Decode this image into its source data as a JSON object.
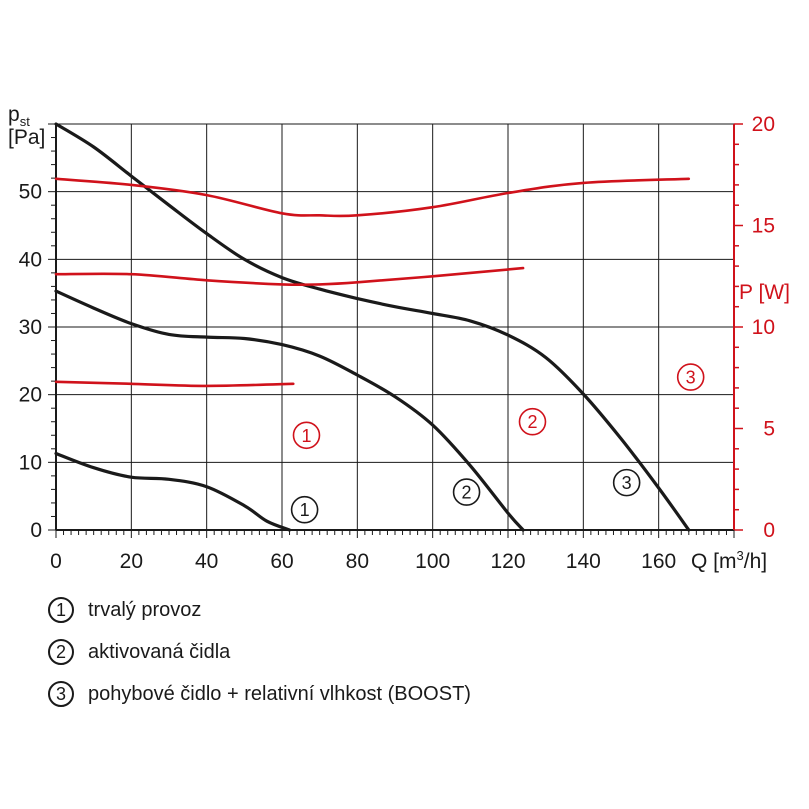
{
  "chart_data": {
    "type": "line",
    "left_axis": {
      "label_main": "p",
      "label_sub": "st",
      "unit": "[Pa]",
      "range": [
        0,
        60
      ],
      "ticks": [
        0,
        10,
        20,
        30,
        40,
        50
      ],
      "tick_labels": [
        "0",
        "10",
        "20",
        "30",
        "40",
        "50"
      ]
    },
    "right_axis": {
      "label": "P [W]",
      "range": [
        0,
        20
      ],
      "ticks": [
        0,
        5,
        10,
        15,
        20
      ],
      "tick_labels": [
        "0",
        "5",
        "10",
        "15",
        "20"
      ],
      "color": "#d0121b"
    },
    "x_axis": {
      "label_pre": "Q [m",
      "label_sup": "3",
      "label_post": "/h]",
      "range": [
        0,
        180
      ],
      "ticks": [
        0,
        20,
        40,
        60,
        80,
        100,
        120,
        140,
        160
      ],
      "tick_labels": [
        "0",
        "20",
        "40",
        "60",
        "80",
        "100",
        "120",
        "140",
        "160"
      ]
    },
    "grid": true,
    "pressure_series": [
      {
        "marker": "1",
        "axis": "left",
        "color": "#1a1a1a",
        "points": [
          [
            0,
            11.3
          ],
          [
            10,
            9.2
          ],
          [
            20,
            7.8
          ],
          [
            30,
            7.5
          ],
          [
            40,
            6.4
          ],
          [
            50,
            3.6
          ],
          [
            56,
            1.3
          ],
          [
            62,
            0
          ]
        ]
      },
      {
        "marker": "2",
        "axis": "left",
        "color": "#1a1a1a",
        "points": [
          [
            0,
            35.3
          ],
          [
            10,
            32.8
          ],
          [
            20,
            30.5
          ],
          [
            30,
            28.9
          ],
          [
            40,
            28.5
          ],
          [
            50,
            28.3
          ],
          [
            60,
            27.4
          ],
          [
            70,
            25.7
          ],
          [
            80,
            22.9
          ],
          [
            90,
            19.7
          ],
          [
            100,
            15.5
          ],
          [
            110,
            9.5
          ],
          [
            120,
            2.5
          ],
          [
            124,
            0
          ]
        ]
      },
      {
        "marker": "3",
        "axis": "left",
        "color": "#1a1a1a",
        "points": [
          [
            0,
            60
          ],
          [
            10,
            56.6
          ],
          [
            20,
            52.3
          ],
          [
            30,
            48
          ],
          [
            40,
            43.8
          ],
          [
            50,
            40
          ],
          [
            60,
            37.3
          ],
          [
            70,
            35.6
          ],
          [
            80,
            34.2
          ],
          [
            90,
            33
          ],
          [
            100,
            32
          ],
          [
            110,
            30.9
          ],
          [
            120,
            28.8
          ],
          [
            130,
            25.5
          ],
          [
            140,
            20.1
          ],
          [
            150,
            13.5
          ],
          [
            160,
            6.2
          ],
          [
            168,
            0
          ]
        ]
      }
    ],
    "power_series": [
      {
        "marker": "1",
        "axis": "right",
        "color": "#d0121b",
        "points": [
          [
            0,
            7.3
          ],
          [
            20,
            7.2
          ],
          [
            40,
            7.1
          ],
          [
            63,
            7.2
          ]
        ]
      },
      {
        "marker": "2",
        "axis": "right",
        "color": "#d0121b",
        "points": [
          [
            0,
            12.6
          ],
          [
            20,
            12.6
          ],
          [
            40,
            12.3
          ],
          [
            60,
            12.1
          ],
          [
            70,
            12.1
          ],
          [
            80,
            12.2
          ],
          [
            100,
            12.5
          ],
          [
            124,
            12.9
          ]
        ]
      },
      {
        "marker": "3",
        "axis": "right",
        "color": "#d0121b",
        "points": [
          [
            0,
            17.3
          ],
          [
            20,
            17
          ],
          [
            40,
            16.5
          ],
          [
            60,
            15.6
          ],
          [
            70,
            15.5
          ],
          [
            80,
            15.5
          ],
          [
            100,
            15.9
          ],
          [
            120,
            16.6
          ],
          [
            140,
            17.1
          ],
          [
            168,
            17.3
          ]
        ]
      }
    ],
    "curve_markers": [
      {
        "label": "1",
        "color": "#1a1a1a",
        "x": 66,
        "y": 3
      },
      {
        "label": "2",
        "color": "#1a1a1a",
        "x": 109,
        "y": 5.6
      },
      {
        "label": "3",
        "color": "#1a1a1a",
        "x": 151.5,
        "y": 7
      },
      {
        "label": "1",
        "color": "#d0121b",
        "x": 66.5,
        "y": 14
      },
      {
        "label": "2",
        "color": "#d0121b",
        "x": 126.5,
        "y": 16
      },
      {
        "label": "3",
        "color": "#d0121b",
        "x": 168.5,
        "y": 22.6
      }
    ]
  },
  "legend": [
    {
      "marker": "1",
      "text": "trvalý provoz"
    },
    {
      "marker": "2",
      "text": "aktivovaná čidla"
    },
    {
      "marker": "3",
      "text": "pohybové čidlo + relativní vlhkost (BOOST)"
    }
  ]
}
